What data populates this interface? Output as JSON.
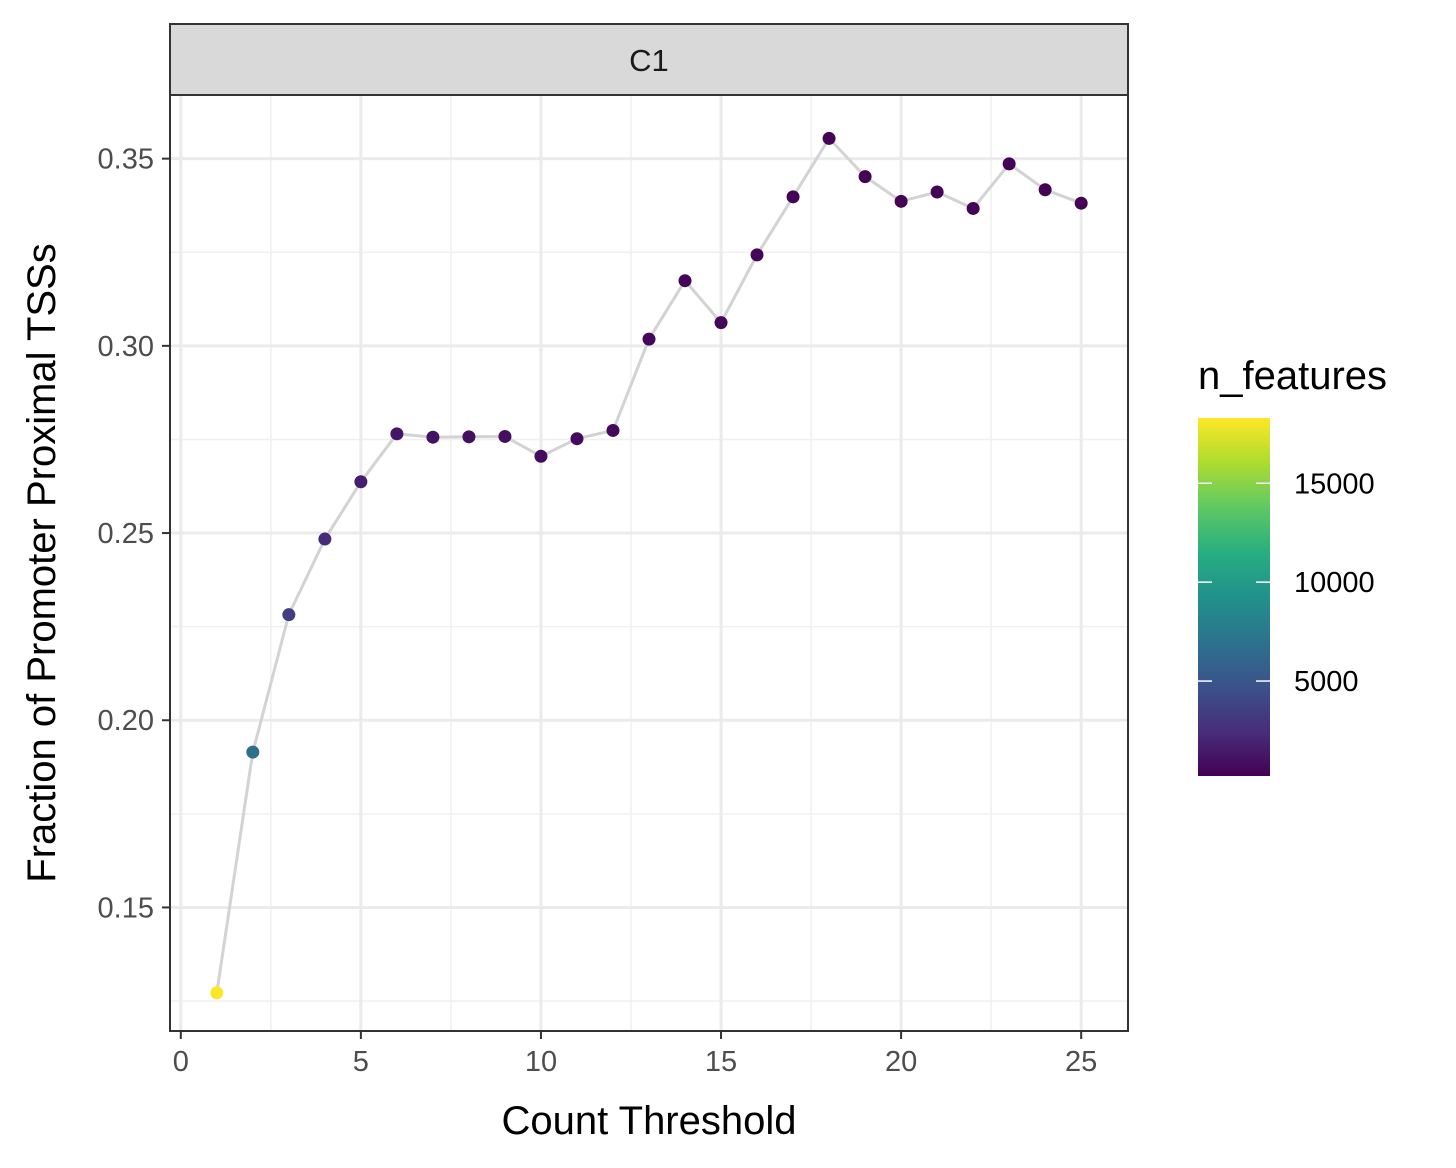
{
  "chart_data": {
    "type": "scatter",
    "facet_label": "C1",
    "xlabel": "Count Threshold",
    "ylabel": "Fraction of Promoter Proximal TSSs",
    "xlim": [
      -0.3,
      26.3
    ],
    "ylim": [
      0.117,
      0.367
    ],
    "x_ticks": [
      0,
      5,
      10,
      15,
      20,
      25
    ],
    "y_ticks": [
      0.15,
      0.2,
      0.25,
      0.3,
      0.35
    ],
    "x_tick_labels": [
      "0",
      "5",
      "10",
      "15",
      "20",
      "25"
    ],
    "y_tick_labels": [
      "0.15",
      "0.20",
      "0.25",
      "0.30",
      "0.35"
    ],
    "grid": true,
    "line_color": "#d3d3d3",
    "color_scale": "viridis",
    "legend": {
      "title": "n_features",
      "placement": "right",
      "min": 200,
      "max": 18300,
      "breaks": [
        5000,
        10000,
        15000
      ],
      "break_labels": [
        "5000",
        "10000",
        "15000"
      ]
    },
    "points": [
      {
        "x": 1,
        "y": 0.1272,
        "n": 18300
      },
      {
        "x": 2,
        "y": 0.1915,
        "n": 6800
      },
      {
        "x": 3,
        "y": 0.2282,
        "n": 3500
      },
      {
        "x": 4,
        "y": 0.2484,
        "n": 2300
      },
      {
        "x": 5,
        "y": 0.2637,
        "n": 1700
      },
      {
        "x": 6,
        "y": 0.2765,
        "n": 1300
      },
      {
        "x": 7,
        "y": 0.2756,
        "n": 1100
      },
      {
        "x": 8,
        "y": 0.2757,
        "n": 950
      },
      {
        "x": 9,
        "y": 0.2758,
        "n": 850
      },
      {
        "x": 10,
        "y": 0.2705,
        "n": 760
      },
      {
        "x": 11,
        "y": 0.2752,
        "n": 680
      },
      {
        "x": 12,
        "y": 0.2774,
        "n": 620
      },
      {
        "x": 13,
        "y": 0.3018,
        "n": 570
      },
      {
        "x": 14,
        "y": 0.3174,
        "n": 530
      },
      {
        "x": 15,
        "y": 0.3062,
        "n": 490
      },
      {
        "x": 16,
        "y": 0.3243,
        "n": 460
      },
      {
        "x": 17,
        "y": 0.3398,
        "n": 430
      },
      {
        "x": 18,
        "y": 0.3554,
        "n": 400
      },
      {
        "x": 19,
        "y": 0.3452,
        "n": 380
      },
      {
        "x": 20,
        "y": 0.3386,
        "n": 360
      },
      {
        "x": 21,
        "y": 0.3411,
        "n": 340
      },
      {
        "x": 22,
        "y": 0.3367,
        "n": 320
      },
      {
        "x": 23,
        "y": 0.3486,
        "n": 300
      },
      {
        "x": 24,
        "y": 0.3417,
        "n": 285
      },
      {
        "x": 25,
        "y": 0.3381,
        "n": 270
      }
    ]
  }
}
